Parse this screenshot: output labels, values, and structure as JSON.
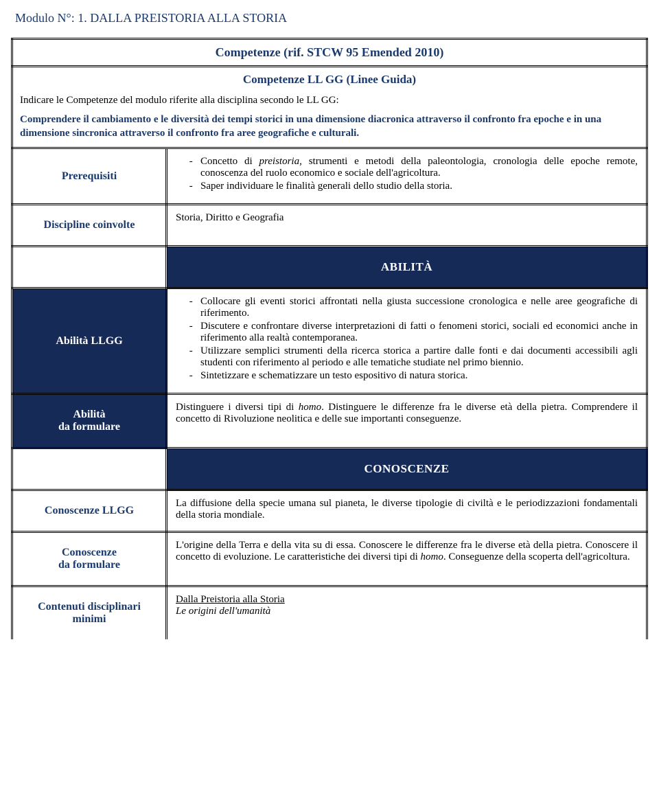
{
  "colors": {
    "heading": "#1a3a6e",
    "band_bg": "#152a56",
    "band_fg": "#ffffff",
    "text": "#000000"
  },
  "module_line": "Modulo N°:  1.   DALLA PREISTORIA ALLA STORIA",
  "competenze_header": "Competenze (rif. STCW 95 Emended 2010)",
  "llgg_subheader": "Competenze LL GG (Linee Guida)",
  "llgg_indicare": "Indicare le Competenze del modulo riferite alla disciplina secondo le LL GG:",
  "llgg_comprendere": "Comprendere il cambiamento e le diversità dei tempi storici in una dimensione diacronica attraverso il confronto fra epoche e in una dimensione sincronica attraverso il confronto fra aree geografiche e culturali.",
  "rows": {
    "prerequisiti": {
      "label": "Prerequisiti",
      "b1a": "Concetto di ",
      "b1b_italic": "preistoria",
      "b1c": ", strumenti e metodi della paleontologia, cronologia delle epoche remote, conoscenza del ruolo economico e sociale dell'agricoltura.",
      "b2": "Saper individuare le finalità generali dello studio della storia."
    },
    "discipline": {
      "label": "Discipline coinvolte",
      "text": "Storia, Diritto e Geografia"
    },
    "abilita_band": "ABILITÀ",
    "abilita_llgg": {
      "label": "Abilità LLGG",
      "b1": "Collocare gli eventi storici affrontati nella giusta successione cronologica e nelle aree geografiche di riferimento.",
      "b2": "Discutere e confrontare diverse interpretazioni di fatti o fenomeni storici, sociali ed economici anche in riferimento alla realtà contemporanea.",
      "b3": "Utilizzare semplici strumenti della ricerca storica a partire dalle fonti e dai documenti accessibili agli studenti con riferimento al periodo e alle tematiche studiate nel primo biennio.",
      "b4": "Sintetizzare e schematizzare un testo espositivo di natura storica."
    },
    "abilita_form": {
      "label_l1": "Abilità",
      "label_l2": "da formulare",
      "t1a": "Distinguere i diversi tipi di ",
      "t1b_italic": "homo",
      "t1c": ". Distinguere le differenze fra le diverse età della pietra.  Comprendere il concetto di Rivoluzione neolitica e delle sue importanti conseguenze."
    },
    "conoscenze_band": "CONOSCENZE",
    "conoscenze_llgg": {
      "label": "Conoscenze LLGG",
      "text": "La diffusione della specie umana sul pianeta, le diverse tipologie di civiltà e le periodizzazioni fondamentali della storia mondiale."
    },
    "conoscenze_form": {
      "label_l1": "Conoscenze",
      "label_l2": "da formulare",
      "t1": "L'origine della Terra e della vita su di essa. Conoscere le differenze fra le diverse età della pietra. Conoscere il concetto di evoluzione. Le caratteristiche dei diversi tipi di ",
      "t1_italic": "homo",
      "t1_end": ". Conseguenze della scoperta dell'agricoltura."
    },
    "contenuti": {
      "label_l1": "Contenuti disciplinari",
      "label_l2": "minimi",
      "line1": "Dalla Preistoria alla Storia",
      "line2": "Le origini dell'umanità"
    }
  }
}
